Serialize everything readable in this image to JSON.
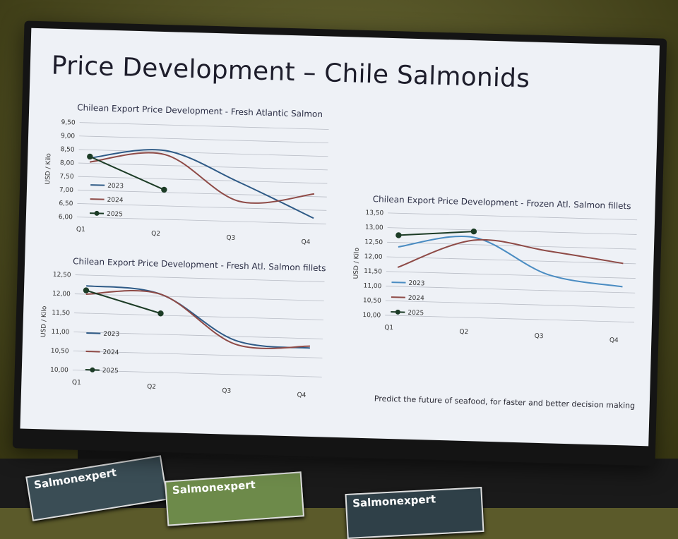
{
  "slide": {
    "title": "Price Development – Chile Salmonids",
    "footer": "Predict the future of seafood, for faster and better decision making"
  },
  "colors": {
    "2023": "#2e5a86",
    "2024": "#8e4a46",
    "2025": "#1c3c26",
    "2023_frozen": "#4a8cc2"
  },
  "magazines": [
    {
      "title": "Salmonexpert"
    },
    {
      "title": "Salmonexpert"
    },
    {
      "title": "Salmonexpert"
    }
  ],
  "chart_data": [
    {
      "type": "line",
      "title": "Chilean Export Price Development - Fresh Atlantic Salmon",
      "ylabel": "USD / Kilo",
      "categories": [
        "Q1",
        "Q2",
        "Q3",
        "Q4"
      ],
      "yticks": [
        "6,00",
        "6,50",
        "7,00",
        "7,50",
        "8,00",
        "8,50",
        "9,00",
        "9,50"
      ],
      "ylim": [
        6.0,
        9.5
      ],
      "grid": true,
      "legend": "bottom-left",
      "series": [
        {
          "name": "2023",
          "values": [
            8.2,
            8.55,
            7.45,
            6.2
          ]
        },
        {
          "name": "2024",
          "values": [
            8.05,
            8.4,
            6.75,
            7.1
          ]
        },
        {
          "name": "2025",
          "values": [
            8.25,
            7.1,
            null,
            null
          ],
          "markers": true
        }
      ]
    },
    {
      "type": "line",
      "title": "Chilean Export Price Development - Frozen Atl. Salmon fillets",
      "ylabel": "USD / Kilo",
      "categories": [
        "Q1",
        "Q2",
        "Q3",
        "Q4"
      ],
      "yticks": [
        "10,00",
        "10,50",
        "11,00",
        "11,50",
        "12,00",
        "12,50",
        "13,00",
        "13,50"
      ],
      "ylim": [
        10.0,
        13.5
      ],
      "grid": true,
      "legend": "bottom-left",
      "series": [
        {
          "name": "2023",
          "values": [
            12.35,
            12.75,
            11.55,
            11.2
          ]
        },
        {
          "name": "2024",
          "values": [
            11.65,
            12.65,
            12.35,
            12.0
          ]
        },
        {
          "name": "2025",
          "values": [
            12.75,
            12.95,
            null,
            null
          ],
          "markers": true
        }
      ]
    },
    {
      "type": "line",
      "title": "Chilean Export Price Development - Fresh Atl. Salmon fillets",
      "ylabel": "USD / Kilo",
      "categories": [
        "Q1",
        "Q2",
        "Q3",
        "Q4"
      ],
      "yticks": [
        "10,00",
        "10,50",
        "11,00",
        "11,50",
        "12,00",
        "12,50"
      ],
      "ylim": [
        10.0,
        12.5
      ],
      "grid": true,
      "legend": "bottom-left",
      "series": [
        {
          "name": "2023",
          "values": [
            12.22,
            12.05,
            10.9,
            10.75
          ]
        },
        {
          "name": "2024",
          "values": [
            12.0,
            12.05,
            10.8,
            10.8
          ]
        },
        {
          "name": "2025",
          "values": [
            12.1,
            11.55,
            null,
            null
          ],
          "markers": true
        }
      ]
    }
  ]
}
